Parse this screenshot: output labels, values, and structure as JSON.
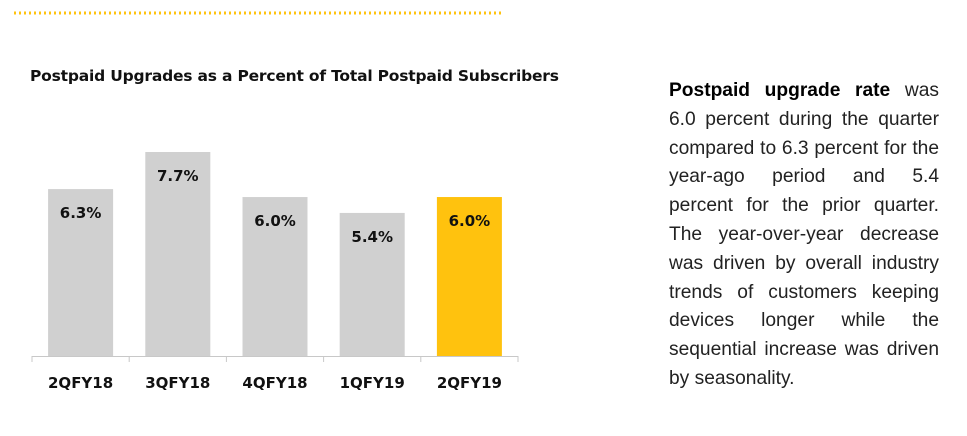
{
  "colors": {
    "accent": "#FFC20E",
    "bar_default": "#D0D0D0",
    "axis": "#C8C8C8",
    "text": "#111111"
  },
  "chart_data": {
    "type": "bar",
    "title": "Postpaid Upgrades as a Percent of Total Postpaid Subscribers",
    "categories": [
      "2QFY18",
      "3QFY18",
      "4QFY18",
      "1QFY19",
      "2QFY19"
    ],
    "values": [
      6.3,
      7.7,
      6.0,
      5.4,
      6.0
    ],
    "data_labels": [
      "6.3%",
      "7.7%",
      "6.0%",
      "5.4%",
      "6.0%"
    ],
    "highlight_index": 4,
    "unit": "%",
    "xlabel": "",
    "ylabel": "",
    "ylim": [
      0,
      7.7
    ],
    "grid": false,
    "legend": "none"
  },
  "commentary": {
    "lead": "Postpaid upgrade rate",
    "body": " was 6.0 percent during the quarter compared to 6.3 percent for the year-ago period and 5.4 percent for the prior quarter. The year-over-year decrease was driven by overall industry trends of customers keeping devices longer while the sequential increase was driven by seasonality."
  }
}
